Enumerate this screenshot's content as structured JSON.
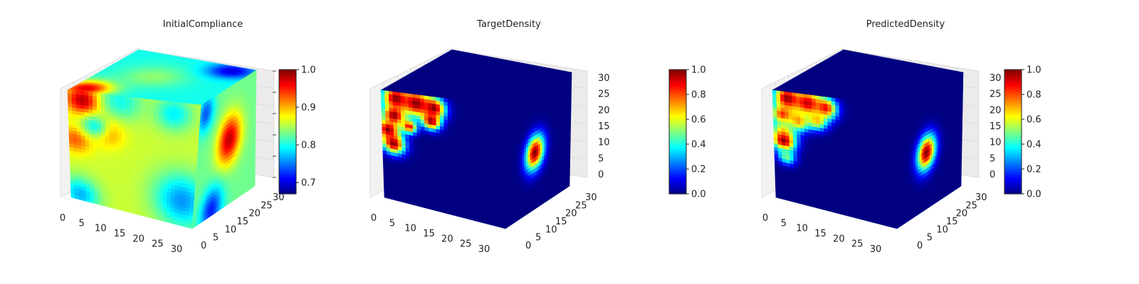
{
  "colormap": "jet",
  "chart_data": [
    {
      "type": "heatmap",
      "subtype": "3d-voxel-cube",
      "title": "InitialCompliance",
      "x_ticks": [
        "0",
        "5",
        "10",
        "15",
        "20",
        "25",
        "30"
      ],
      "y_ticks": [
        "0",
        "5",
        "10",
        "15",
        "20",
        "25",
        "30"
      ],
      "z_ticks": [],
      "grid": true,
      "colorbar": {
        "ticks": [
          "0.7",
          "0.8",
          "0.9",
          "1.0"
        ],
        "range": [
          0.67,
          1.0
        ]
      },
      "faces": {
        "front": {
          "background": 0.86,
          "blobs": [
            {
              "u": 0.12,
              "v": 0.08,
              "r": 0.13,
              "value": 0.99
            },
            {
              "u": 0.4,
              "v": 0.05,
              "r": 0.16,
              "value": 0.8
            },
            {
              "u": 0.8,
              "v": 0.1,
              "r": 0.14,
              "value": 0.79
            },
            {
              "u": 0.05,
              "v": 0.45,
              "r": 0.12,
              "value": 0.93
            },
            {
              "u": 0.3,
              "v": 0.35,
              "r": 0.12,
              "value": 0.91
            },
            {
              "u": 0.2,
              "v": 0.3,
              "r": 0.1,
              "value": 0.8
            },
            {
              "u": 0.9,
              "v": 0.8,
              "r": 0.22,
              "value": 0.76
            },
            {
              "u": 0.08,
              "v": 0.95,
              "r": 0.15,
              "value": 0.77
            }
          ]
        },
        "top": {
          "background": 0.8,
          "blobs": [
            {
              "u": 0.1,
              "v": 0.92,
              "r": 0.18,
              "value": 0.97
            },
            {
              "u": 0.4,
              "v": 0.5,
              "r": 0.25,
              "value": 0.84
            },
            {
              "u": 0.85,
              "v": 0.12,
              "r": 0.18,
              "value": 0.7
            }
          ]
        },
        "side": {
          "background": 0.83,
          "blobs": [
            {
              "u": 0.55,
              "v": 0.45,
              "r": 0.2,
              "value": 0.98
            },
            {
              "u": 0.1,
              "v": 0.1,
              "r": 0.15,
              "value": 0.74
            },
            {
              "u": 0.3,
              "v": 0.95,
              "r": 0.18,
              "value": 0.72
            }
          ]
        }
      }
    },
    {
      "type": "heatmap",
      "subtype": "3d-voxel-cube",
      "title": "TargetDensity",
      "x_ticks": [
        "0",
        "5",
        "10",
        "15",
        "20",
        "25",
        "30"
      ],
      "y_ticks": [
        "0",
        "5",
        "10",
        "15",
        "20",
        "25",
        "30"
      ],
      "z_ticks": [
        "0",
        "5",
        "10",
        "15",
        "20",
        "25",
        "30"
      ],
      "grid": true,
      "colorbar": {
        "ticks": [
          "0.0",
          "0.2",
          "0.4",
          "0.6",
          "0.8",
          "1.0"
        ],
        "range": [
          0.0,
          1.0
        ]
      },
      "faces": {
        "front": {
          "background": 0.0,
          "blobs": [
            {
              "u": 0.12,
              "v": 0.06,
              "r": 0.11,
              "value": 1.0
            },
            {
              "u": 0.28,
              "v": 0.08,
              "r": 0.12,
              "value": 1.0
            },
            {
              "u": 0.42,
              "v": 0.1,
              "r": 0.09,
              "value": 1.0
            },
            {
              "u": 0.1,
              "v": 0.22,
              "r": 0.09,
              "value": 1.0
            },
            {
              "u": 0.4,
              "v": 0.22,
              "r": 0.07,
              "value": 1.0
            },
            {
              "u": 0.05,
              "v": 0.36,
              "r": 0.09,
              "value": 1.0
            },
            {
              "u": 0.09,
              "v": 0.48,
              "r": 0.09,
              "value": 1.0
            },
            {
              "u": 0.22,
              "v": 0.3,
              "r": 0.06,
              "value": 0.9
            }
          ]
        },
        "top": {
          "background": 0.0,
          "blobs": []
        },
        "side": {
          "background": 0.0,
          "blobs": [
            {
              "u": 0.45,
              "v": 0.52,
              "r": 0.14,
              "value": 1.0
            }
          ]
        }
      }
    },
    {
      "type": "heatmap",
      "subtype": "3d-voxel-cube",
      "title": "PredictedDensity",
      "x_ticks": [
        "0",
        "5",
        "10",
        "15",
        "20",
        "25",
        "30"
      ],
      "y_ticks": [
        "0",
        "5",
        "10",
        "15",
        "20",
        "25",
        "30"
      ],
      "z_ticks": [
        "0",
        "5",
        "10",
        "15",
        "20",
        "25",
        "30"
      ],
      "grid": true,
      "colorbar": {
        "ticks": [
          "0.0",
          "0.2",
          "0.4",
          "0.6",
          "0.8",
          "1.0"
        ],
        "range": [
          0.0,
          1.0
        ]
      },
      "faces": {
        "front": {
          "background": 0.0,
          "blobs": [
            {
              "u": 0.12,
              "v": 0.06,
              "r": 0.11,
              "value": 1.0
            },
            {
              "u": 0.28,
              "v": 0.08,
              "r": 0.12,
              "value": 0.95
            },
            {
              "u": 0.42,
              "v": 0.1,
              "r": 0.09,
              "value": 0.9
            },
            {
              "u": 0.08,
              "v": 0.22,
              "r": 0.09,
              "value": 0.9
            },
            {
              "u": 0.2,
              "v": 0.25,
              "r": 0.09,
              "value": 0.75
            },
            {
              "u": 0.35,
              "v": 0.22,
              "r": 0.08,
              "value": 0.7
            },
            {
              "u": 0.08,
              "v": 0.36,
              "r": 0.1,
              "value": 0.55
            },
            {
              "u": 0.08,
              "v": 0.46,
              "r": 0.09,
              "value": 1.0
            },
            {
              "u": 0.1,
              "v": 0.6,
              "r": 0.07,
              "value": 0.5
            }
          ]
        },
        "top": {
          "background": 0.0,
          "blobs": []
        },
        "side": {
          "background": 0.0,
          "blobs": [
            {
              "u": 0.45,
              "v": 0.52,
              "r": 0.14,
              "value": 1.0
            }
          ]
        }
      }
    }
  ]
}
